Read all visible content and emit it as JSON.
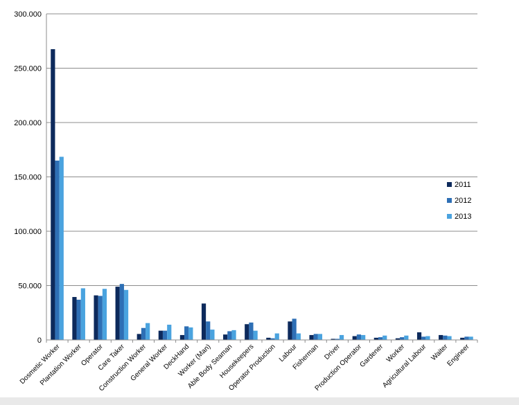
{
  "chart_data": {
    "type": "bar",
    "categories": [
      "Dosmetic Worker",
      "Plantation Worker",
      "Operator",
      "Care Taker",
      "Construction Worker",
      "General Worker",
      "DeckHand",
      "Worker (Man)",
      "Able Body Seaman",
      "Housekeepers",
      "Operator Production",
      "Labour",
      "Fisherman",
      "Driver",
      "Production Operator",
      "Gardener",
      "Worker",
      "Agricultural Labour",
      "Waiter",
      "Engineer"
    ],
    "series": [
      {
        "name": "2011",
        "color": "#0d2a5c",
        "values": [
          267500,
          39500,
          41000,
          49000,
          5500,
          8500,
          4500,
          33500,
          5000,
          14500,
          2000,
          17000,
          4500,
          1000,
          3500,
          2000,
          1500,
          7000,
          4500,
          2000
        ]
      },
      {
        "name": "2012",
        "color": "#2e6fb5",
        "values": [
          165000,
          37000,
          40500,
          51500,
          11000,
          8500,
          12500,
          17000,
          8000,
          16000,
          1500,
          19500,
          5500,
          1000,
          5000,
          2500,
          2500,
          3000,
          4000,
          3000
        ]
      },
      {
        "name": "2013",
        "color": "#4aa3df",
        "values": [
          168500,
          47500,
          47000,
          46000,
          15500,
          14000,
          11500,
          9500,
          9000,
          8500,
          6000,
          6000,
          5500,
          4500,
          4500,
          4000,
          4000,
          3500,
          3500,
          3000
        ]
      }
    ],
    "ylim": [
      0,
      300000
    ],
    "yticks": [
      {
        "value": 0,
        "label": "0"
      },
      {
        "value": 50000,
        "label": "50.000"
      },
      {
        "value": 100000,
        "label": "100.000"
      },
      {
        "value": 150000,
        "label": "150.000"
      },
      {
        "value": 200000,
        "label": "200.000"
      },
      {
        "value": 250000,
        "label": "250.000"
      },
      {
        "value": 300000,
        "label": "300.000"
      }
    ],
    "grid": true,
    "legend_position": "right"
  }
}
